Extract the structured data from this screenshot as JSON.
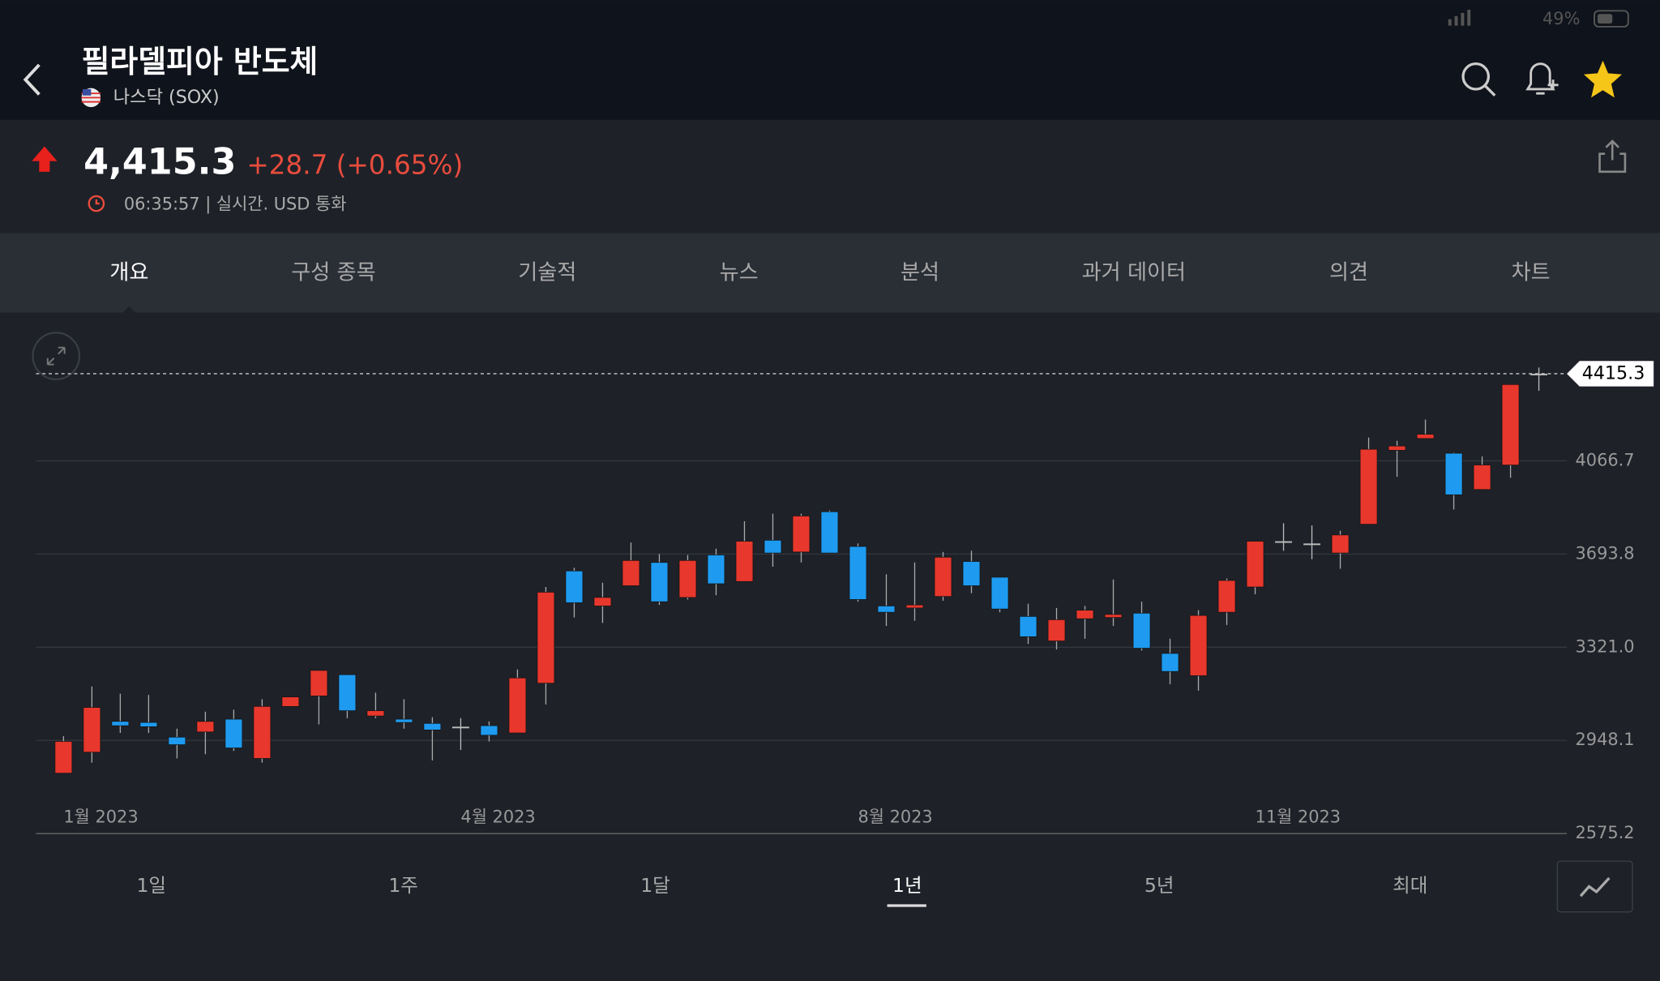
{
  "status": {
    "battery": "49%"
  },
  "header": {
    "title": "필라델피아 반도체",
    "subtitle": "나스닥 (SOX)"
  },
  "quote": {
    "price": "4,415.3",
    "change": "+28.7 (+0.65%)",
    "time": "06:35:57 | 실시간. USD 통화"
  },
  "tabs": [
    "개요",
    "구성 종목",
    "기술적",
    "뉴스",
    "분석",
    "과거 데이터",
    "의견",
    "차트"
  ],
  "chart_data": {
    "type": "candlestick",
    "categories": [
      "1월 2023",
      null,
      null,
      null,
      null,
      null,
      null,
      null,
      null,
      null,
      null,
      null,
      null,
      null,
      "4월 2023",
      null,
      null,
      null,
      null,
      null,
      null,
      null,
      null,
      null,
      null,
      null,
      null,
      null,
      "8월 2023",
      null,
      null,
      null,
      null,
      null,
      null,
      null,
      null,
      null,
      null,
      null,
      null,
      null,
      "11월 2023",
      null,
      null,
      null,
      null,
      null,
      null,
      null,
      null,
      null,
      null
    ],
    "open": [
      2817,
      2901,
      3024,
      3020,
      2961,
      2982,
      3033,
      2876,
      3084,
      3126,
      3211,
      3046,
      3033,
      3016,
      3003,
      3007,
      2978,
      3177,
      3626,
      3486,
      3567,
      3660,
      3520,
      3690,
      3584,
      3749,
      3702,
      3863,
      3724,
      3486,
      3478,
      3524,
      3664,
      3601,
      3444,
      3346,
      3435,
      3440,
      3457,
      3296,
      3207,
      3461,
      3562,
      3745,
      3736,
      3698,
      3813,
      4109,
      4156,
      4097,
      3952,
      4050,
      4410
    ],
    "high": [
      2965,
      3164,
      3135,
      3130,
      2995,
      3063,
      3071,
      3113,
      3122,
      3228,
      3211,
      3139,
      3113,
      3041,
      3037,
      3024,
      3232,
      3562,
      3639,
      3579,
      3740,
      3694,
      3690,
      3715,
      3825,
      3855,
      3855,
      3868,
      3736,
      3613,
      3660,
      3702,
      3707,
      3601,
      3495,
      3478,
      3486,
      3592,
      3503,
      3355,
      3469,
      3596,
      3745,
      3817,
      3808,
      3787,
      4160,
      4147,
      4232,
      4100,
      4084,
      4372,
      4440
    ],
    "low": [
      2817,
      2859,
      2978,
      2978,
      2876,
      2893,
      2906,
      2859,
      3084,
      3012,
      3037,
      3037,
      2995,
      2868,
      2910,
      2944,
      2978,
      3092,
      3440,
      3418,
      3567,
      3490,
      3512,
      3529,
      3584,
      3643,
      3660,
      3698,
      3503,
      3406,
      3427,
      3507,
      3537,
      3461,
      3334,
      3312,
      3355,
      3406,
      3308,
      3173,
      3147,
      3410,
      3533,
      3707,
      3673,
      3635,
      3813,
      4003,
      4156,
      3872,
      3952,
      3999,
      4347
    ],
    "close": [
      2944,
      3080,
      3007,
      3003,
      2931,
      3024,
      2918,
      3084,
      3122,
      3228,
      3067,
      3067,
      3020,
      2990,
      3003,
      2969,
      3198,
      3541,
      3499,
      3520,
      3668,
      3503,
      3668,
      3575,
      3745,
      3698,
      3846,
      3698,
      3512,
      3461,
      3490,
      3681,
      3567,
      3474,
      3363,
      3431,
      3469,
      3452,
      3317,
      3224,
      3448,
      3588,
      3745,
      3745,
      3736,
      3770,
      4113,
      4126,
      4173,
      3931,
      4050,
      4372,
      4415.3
    ],
    "up_color": "#e8372c",
    "down_color": "#1e9bf0",
    "ylim": [
      2575.2,
      4448
    ],
    "yticks": [
      2575.2,
      2948.1,
      {
        "value": 3321,
        "label": "3321.0"
      },
      3693.8,
      4066.7
    ],
    "grid": true,
    "last_price": 4415.3
  },
  "ranges": [
    "1일",
    "1주",
    "1달",
    "1년",
    "5년",
    "최대"
  ]
}
